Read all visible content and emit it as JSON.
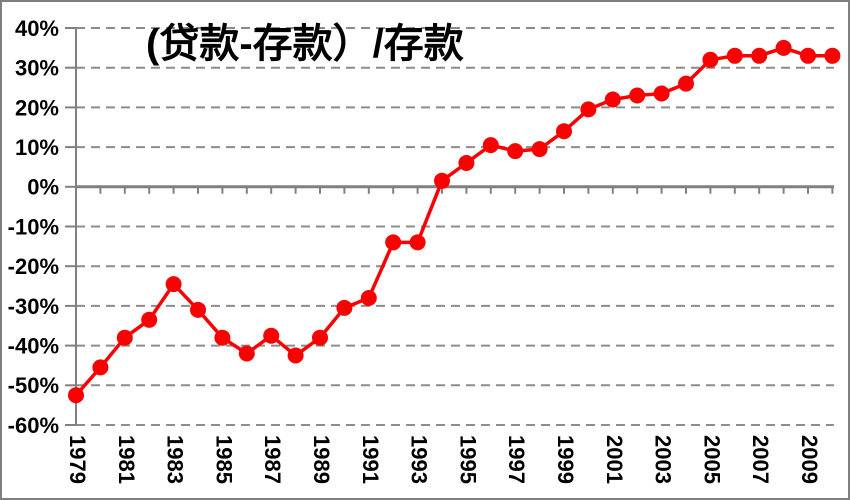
{
  "window": {
    "background_color": "#ffffff",
    "border_color": "#7f7f7f"
  },
  "chart_data": {
    "type": "line",
    "title": "(贷款-存款）/存款",
    "xlabel": "",
    "ylabel": "",
    "legend": "none",
    "grid": "horizontal-dashed",
    "ylim": [
      -60,
      40
    ],
    "x": [
      1979,
      1980,
      1981,
      1982,
      1983,
      1984,
      1985,
      1986,
      1987,
      1988,
      1989,
      1990,
      1991,
      1992,
      1993,
      1994,
      1995,
      1996,
      1997,
      1998,
      1999,
      2000,
      2001,
      2002,
      2003,
      2004,
      2005,
      2006,
      2007,
      2008,
      2009,
      2010
    ],
    "values": [
      -52.5,
      -45.5,
      -38,
      -33.5,
      -24.5,
      -31,
      -38,
      -42,
      -37.5,
      -42.5,
      -38,
      -30.5,
      -28,
      -14,
      -14,
      1.5,
      6,
      10.5,
      9,
      9.5,
      14,
      19.5,
      22,
      23,
      23.5,
      26,
      32,
      33,
      33,
      35,
      33,
      33
    ],
    "y_ticks": [
      40,
      30,
      20,
      10,
      0,
      -10,
      -20,
      -30,
      -40,
      -50,
      -60
    ],
    "y_tick_labels": [
      "40%",
      "30%",
      "20%",
      "10%",
      "0%",
      "-10%",
      "-20%",
      "-30%",
      "-40%",
      "-50%",
      "-60%"
    ],
    "x_tick_labels": [
      "1979",
      "1981",
      "1983",
      "1985",
      "1987",
      "1989",
      "1991",
      "1993",
      "1995",
      "1997",
      "1999",
      "2001",
      "2003",
      "2005",
      "2007",
      "2009"
    ],
    "x_tick_label_years": [
      1979,
      1981,
      1983,
      1985,
      1987,
      1989,
      1991,
      1993,
      1995,
      1997,
      1999,
      2001,
      2003,
      2005,
      2007,
      2009
    ],
    "colors": {
      "series": "#fb0000",
      "gridline": "#8c8c8c",
      "axis": "#808080",
      "text": "#000000"
    }
  }
}
